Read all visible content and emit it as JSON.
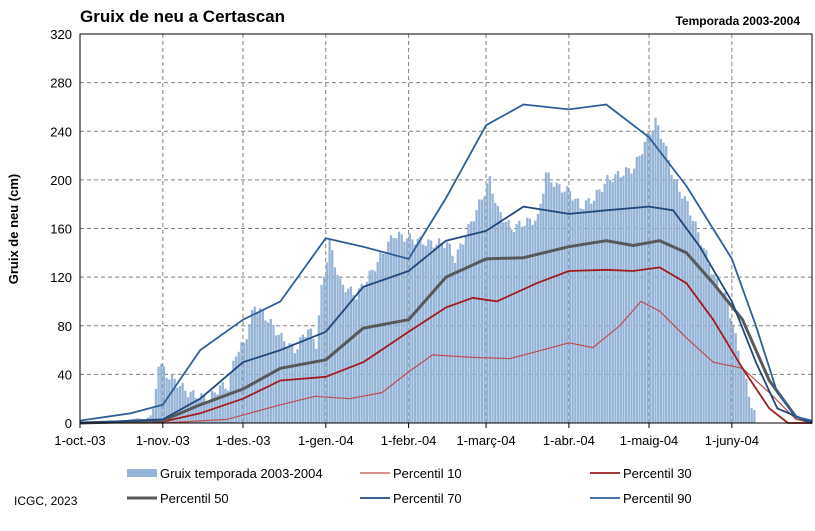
{
  "chart_data": {
    "type": "bar",
    "title": "Gruix de neu a Certascan",
    "subtitle": "Temporada 2003-2004",
    "ylabel": "Gruix de neu (cm)",
    "xlabel": "",
    "ylim": [
      0,
      320
    ],
    "yticks": [
      0,
      40,
      80,
      120,
      160,
      200,
      240,
      280,
      320
    ],
    "x_start": "2003-10-01",
    "x_end": "2004-07-01",
    "xticks": [
      {
        "date": "2003-10-01",
        "label": "1-oct.-03"
      },
      {
        "date": "2003-11-01",
        "label": "1-nov.-03"
      },
      {
        "date": "2003-12-01",
        "label": "1-des.-03"
      },
      {
        "date": "2004-01-01",
        "label": "1-gen.-04"
      },
      {
        "date": "2004-02-01",
        "label": "1-febr.-04"
      },
      {
        "date": "2004-03-01",
        "label": "1-març-04"
      },
      {
        "date": "2004-04-01",
        "label": "1-abr.-04"
      },
      {
        "date": "2004-05-01",
        "label": "1-maig-04"
      },
      {
        "date": "2004-06-01",
        "label": "1-juny-04"
      }
    ],
    "grid": true,
    "legend_position": "bottom",
    "bar_series": {
      "name": "Gruix temporada 2003-2004",
      "color": "#95b3d7",
      "points": [
        [
          "2003-10-01",
          0
        ],
        [
          "2003-10-18",
          0
        ],
        [
          "2003-10-19",
          3
        ],
        [
          "2003-10-22",
          4
        ],
        [
          "2003-10-25",
          3
        ],
        [
          "2003-10-28",
          8
        ],
        [
          "2003-10-30",
          50
        ],
        [
          "2003-11-02",
          40
        ],
        [
          "2003-11-06",
          33
        ],
        [
          "2003-11-10",
          25
        ],
        [
          "2003-11-14",
          22
        ],
        [
          "2003-11-18",
          20
        ],
        [
          "2003-11-22",
          30
        ],
        [
          "2003-11-25",
          30
        ],
        [
          "2003-11-28",
          58
        ],
        [
          "2003-12-01",
          65
        ],
        [
          "2003-12-05",
          97
        ],
        [
          "2003-12-10",
          85
        ],
        [
          "2003-12-15",
          70
        ],
        [
          "2003-12-20",
          60
        ],
        [
          "2003-12-25",
          78
        ],
        [
          "2003-12-28",
          65
        ],
        [
          "2003-12-30",
          110
        ],
        [
          "2004-01-02",
          148
        ],
        [
          "2004-01-06",
          115
        ],
        [
          "2004-01-12",
          105
        ],
        [
          "2004-01-18",
          125
        ],
        [
          "2004-01-22",
          140
        ],
        [
          "2004-01-26",
          155
        ],
        [
          "2004-02-01",
          152
        ],
        [
          "2004-02-08",
          148
        ],
        [
          "2004-02-15",
          148
        ],
        [
          "2004-02-18",
          135
        ],
        [
          "2004-02-23",
          160
        ],
        [
          "2004-02-28",
          185
        ],
        [
          "2004-03-02",
          200
        ],
        [
          "2004-03-05",
          175
        ],
        [
          "2004-03-10",
          160
        ],
        [
          "2004-03-15",
          165
        ],
        [
          "2004-03-20",
          168
        ],
        [
          "2004-03-23",
          205
        ],
        [
          "2004-03-27",
          195
        ],
        [
          "2004-04-01",
          190
        ],
        [
          "2004-04-05",
          178
        ],
        [
          "2004-04-10",
          185
        ],
        [
          "2004-04-15",
          200
        ],
        [
          "2004-04-20",
          205
        ],
        [
          "2004-04-25",
          210
        ],
        [
          "2004-04-30",
          235
        ],
        [
          "2004-05-03",
          248
        ],
        [
          "2004-05-06",
          232
        ],
        [
          "2004-05-10",
          200
        ],
        [
          "2004-05-15",
          180
        ],
        [
          "2004-05-20",
          150
        ],
        [
          "2004-05-25",
          120
        ],
        [
          "2004-05-30",
          100
        ],
        [
          "2004-06-03",
          60
        ],
        [
          "2004-06-08",
          15
        ],
        [
          "2004-06-10",
          0
        ],
        [
          "2004-07-01",
          0
        ]
      ]
    },
    "series": [
      {
        "name": "Percentil 10",
        "color": "#c0504d",
        "width": 1.2,
        "points": [
          [
            "2003-10-01",
            0
          ],
          [
            "2003-11-01",
            0
          ],
          [
            "2003-11-25",
            3
          ],
          [
            "2003-12-15",
            15
          ],
          [
            "2003-12-28",
            22
          ],
          [
            "2004-01-10",
            20
          ],
          [
            "2004-01-22",
            25
          ],
          [
            "2004-02-01",
            42
          ],
          [
            "2004-02-10",
            56
          ],
          [
            "2004-02-25",
            54
          ],
          [
            "2004-03-10",
            53
          ],
          [
            "2004-03-22",
            60
          ],
          [
            "2004-04-01",
            66
          ],
          [
            "2004-04-10",
            62
          ],
          [
            "2004-04-20",
            80
          ],
          [
            "2004-04-28",
            100
          ],
          [
            "2004-05-05",
            92
          ],
          [
            "2004-05-15",
            70
          ],
          [
            "2004-05-25",
            50
          ],
          [
            "2004-06-05",
            45
          ],
          [
            "2004-06-15",
            25
          ],
          [
            "2004-06-25",
            3
          ],
          [
            "2004-07-01",
            0
          ]
        ]
      },
      {
        "name": "Percentil 30",
        "color": "#a11d1d",
        "width": 1.8,
        "points": [
          [
            "2003-10-01",
            0
          ],
          [
            "2003-11-01",
            1
          ],
          [
            "2003-11-15",
            8
          ],
          [
            "2003-12-01",
            20
          ],
          [
            "2003-12-15",
            35
          ],
          [
            "2004-01-01",
            38
          ],
          [
            "2004-01-15",
            50
          ],
          [
            "2004-02-01",
            75
          ],
          [
            "2004-02-15",
            95
          ],
          [
            "2004-02-25",
            103
          ],
          [
            "2004-03-05",
            100
          ],
          [
            "2004-03-20",
            115
          ],
          [
            "2004-04-01",
            125
          ],
          [
            "2004-04-15",
            126
          ],
          [
            "2004-04-25",
            125
          ],
          [
            "2004-05-05",
            128
          ],
          [
            "2004-05-15",
            115
          ],
          [
            "2004-05-25",
            85
          ],
          [
            "2004-06-05",
            45
          ],
          [
            "2004-06-15",
            12
          ],
          [
            "2004-06-22",
            0
          ],
          [
            "2004-07-01",
            0
          ]
        ]
      },
      {
        "name": "Percentil 50",
        "color": "#595959",
        "width": 3,
        "points": [
          [
            "2003-10-01",
            0
          ],
          [
            "2003-11-01",
            2
          ],
          [
            "2003-11-15",
            15
          ],
          [
            "2003-12-01",
            28
          ],
          [
            "2003-12-15",
            45
          ],
          [
            "2004-01-01",
            52
          ],
          [
            "2004-01-15",
            78
          ],
          [
            "2004-02-01",
            85
          ],
          [
            "2004-02-15",
            120
          ],
          [
            "2004-03-01",
            135
          ],
          [
            "2004-03-15",
            136
          ],
          [
            "2004-04-01",
            145
          ],
          [
            "2004-04-15",
            150
          ],
          [
            "2004-04-25",
            146
          ],
          [
            "2004-05-05",
            150
          ],
          [
            "2004-05-15",
            140
          ],
          [
            "2004-05-25",
            115
          ],
          [
            "2004-06-05",
            85
          ],
          [
            "2004-06-15",
            35
          ],
          [
            "2004-06-25",
            5
          ],
          [
            "2004-07-01",
            0
          ]
        ]
      },
      {
        "name": "Percentil 70",
        "color": "#1f497d",
        "width": 1.8,
        "points": [
          [
            "2003-10-01",
            0
          ],
          [
            "2003-11-01",
            3
          ],
          [
            "2003-11-15",
            20
          ],
          [
            "2003-12-01",
            50
          ],
          [
            "2003-12-15",
            60
          ],
          [
            "2004-01-01",
            75
          ],
          [
            "2004-01-15",
            112
          ],
          [
            "2004-02-01",
            125
          ],
          [
            "2004-02-15",
            150
          ],
          [
            "2004-03-01",
            158
          ],
          [
            "2004-03-15",
            178
          ],
          [
            "2004-04-01",
            172
          ],
          [
            "2004-04-15",
            175
          ],
          [
            "2004-05-01",
            178
          ],
          [
            "2004-05-10",
            175
          ],
          [
            "2004-05-20",
            145
          ],
          [
            "2004-06-01",
            100
          ],
          [
            "2004-06-10",
            50
          ],
          [
            "2004-06-18",
            12
          ],
          [
            "2004-07-01",
            0
          ]
        ]
      },
      {
        "name": "Percentil 90",
        "color": "#2e5f9a",
        "width": 1.8,
        "points": [
          [
            "2003-10-01",
            2
          ],
          [
            "2003-10-20",
            8
          ],
          [
            "2003-11-01",
            15
          ],
          [
            "2003-11-15",
            60
          ],
          [
            "2003-12-01",
            85
          ],
          [
            "2003-12-15",
            100
          ],
          [
            "2004-01-01",
            152
          ],
          [
            "2004-01-15",
            145
          ],
          [
            "2004-02-01",
            135
          ],
          [
            "2004-02-15",
            185
          ],
          [
            "2004-03-01",
            245
          ],
          [
            "2004-03-15",
            262
          ],
          [
            "2004-04-01",
            258
          ],
          [
            "2004-04-15",
            262
          ],
          [
            "2004-05-01",
            235
          ],
          [
            "2004-05-15",
            195
          ],
          [
            "2004-06-01",
            135
          ],
          [
            "2004-06-10",
            80
          ],
          [
            "2004-06-18",
            25
          ],
          [
            "2004-06-25",
            5
          ],
          [
            "2004-07-01",
            2
          ]
        ]
      }
    ],
    "credit": "ICGC, 2023"
  }
}
